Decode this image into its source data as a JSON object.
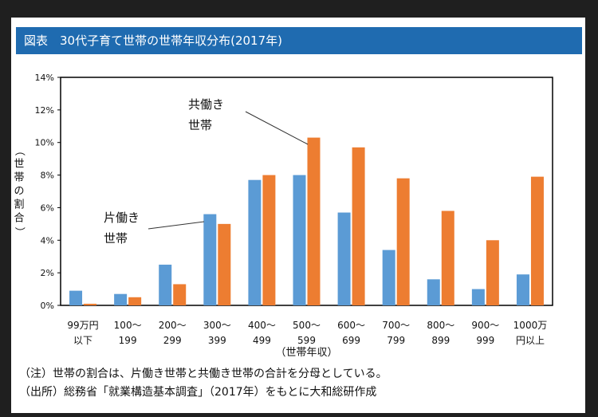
{
  "title": "図表　30代子育て世帯の世帯年収分布(2017年)",
  "chart_data": {
    "type": "bar",
    "categories": [
      [
        "99万円",
        "以下"
      ],
      [
        "100〜",
        "199"
      ],
      [
        "200〜",
        "299"
      ],
      [
        "300〜",
        "399"
      ],
      [
        "400〜",
        "499"
      ],
      [
        "500〜",
        "599"
      ],
      [
        "600〜",
        "699"
      ],
      [
        "700〜",
        "799"
      ],
      [
        "800〜",
        "899"
      ],
      [
        "900〜",
        "999"
      ],
      [
        "1000万",
        "円以上"
      ]
    ],
    "series": [
      {
        "name": "片働き世帯",
        "color": "#5b9bd5",
        "values": [
          0.9,
          0.7,
          2.5,
          5.6,
          7.7,
          8.0,
          5.7,
          3.4,
          1.6,
          1.0,
          1.9
        ]
      },
      {
        "name": "共働き世帯",
        "color": "#ed7d31",
        "values": [
          0.1,
          0.5,
          1.3,
          5.0,
          8.0,
          10.3,
          9.7,
          7.8,
          5.8,
          4.0,
          7.9
        ]
      }
    ],
    "ylim": [
      0,
      14
    ],
    "yticks": [
      "0%",
      "2%",
      "4%",
      "6%",
      "8%",
      "10%",
      "12%",
      "14%"
    ],
    "ylabel": "（世帯の割合）",
    "xlabel": "（世帯年収）",
    "grid": false,
    "annotations": [
      {
        "series": 0,
        "lines": [
          "片働き",
          "世帯"
        ]
      },
      {
        "series": 1,
        "lines": [
          "共働き",
          "世帯"
        ]
      }
    ]
  },
  "notes": [
    "（注）世帯の割合は、片働き世帯と共働き世帯の合計を分母としている。",
    "（出所）総務省「就業構造基本調査」（2017年）をもとに大和総研作成"
  ]
}
